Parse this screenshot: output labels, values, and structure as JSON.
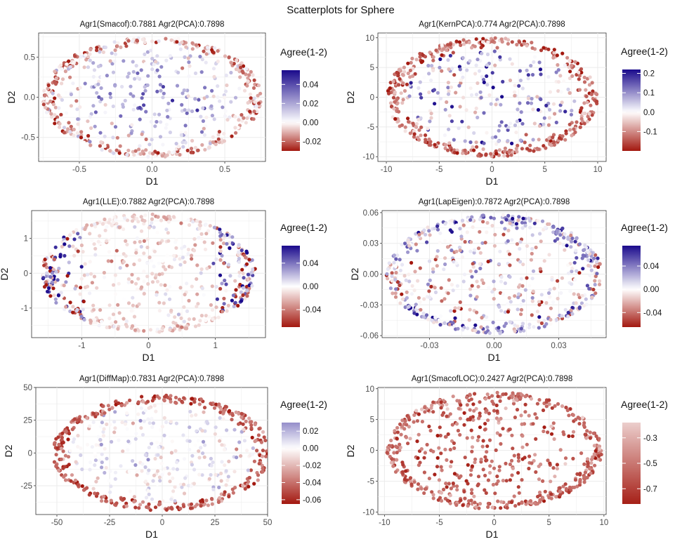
{
  "page_title": "Scatterplots for Sphere",
  "colors": {
    "low": "#a3180f",
    "mid": "#ffffff",
    "high": "#1a0a8c",
    "panel_bg": "#ffffff",
    "grid": "#ebebeb"
  },
  "chart_data": [
    {
      "type": "scatter",
      "title": "Agr1(Smacof):0.7881 Agr2(PCA):0.7898",
      "xlabel": "D1",
      "ylabel": "D2",
      "xlim": [
        -0.78,
        0.78
      ],
      "ylim": [
        -0.8,
        0.8
      ],
      "xticks": [
        -0.5,
        0.0,
        0.5
      ],
      "xtick_labels": [
        "-0.5",
        "0.0",
        "0.5"
      ],
      "yticks": [
        -0.5,
        0.0,
        0.5
      ],
      "ytick_labels": [
        "-0.5",
        "0.0",
        "0.5"
      ],
      "ellipse": {
        "rx": 0.75,
        "ry": 0.75
      },
      "pattern": "smacof",
      "legend_title": "Agree(1-2)",
      "color_range": [
        -0.03,
        0.055
      ],
      "legend_ticks": [
        0.04,
        0.02,
        0.0,
        -0.02
      ],
      "legend_tick_labels": [
        "0.04",
        "0.02",
        "0.00",
        "-0.02"
      ]
    },
    {
      "type": "scatter",
      "title": "Agr1(KernPCA):0.774 Agr2(PCA):0.7898",
      "xlabel": "D1",
      "ylabel": "D2",
      "xlim": [
        -10.8,
        10.8
      ],
      "ylim": [
        -10.8,
        10.8
      ],
      "xticks": [
        -10,
        -5,
        0,
        5,
        10
      ],
      "xtick_labels": [
        "-10",
        "-5",
        "0",
        "5",
        "10"
      ],
      "yticks": [
        -10,
        -5,
        0,
        5,
        10
      ],
      "ytick_labels": [
        "-10",
        "-5",
        "0",
        "5",
        "10"
      ],
      "ellipse": {
        "rx": 10,
        "ry": 10
      },
      "pattern": "kernpca",
      "legend_title": "Agree(1-2)",
      "color_range": [
        -0.2,
        0.22
      ],
      "legend_ticks": [
        0.2,
        0.1,
        0.0,
        -0.1
      ],
      "legend_tick_labels": [
        "0.2",
        "0.1",
        "0.0",
        "-0.1"
      ]
    },
    {
      "type": "scatter",
      "title": "Agr1(LLE):0.7882 Agr2(PCA):0.7898",
      "xlabel": "D1",
      "ylabel": "D2",
      "xlim": [
        -1.75,
        1.75
      ],
      "ylim": [
        -1.85,
        1.8
      ],
      "xticks": [
        -1,
        0,
        1
      ],
      "xtick_labels": [
        "-1",
        "0",
        "1"
      ],
      "yticks": [
        -1,
        0,
        1
      ],
      "ytick_labels": [
        "-1",
        "0",
        "1"
      ],
      "ellipse": {
        "rx": 1.6,
        "ry": 1.7
      },
      "pattern": "lle",
      "legend_title": "Agree(1-2)",
      "color_range": [
        -0.07,
        0.07
      ],
      "legend_ticks": [
        0.04,
        0.0,
        -0.04
      ],
      "legend_tick_labels": [
        "0.04",
        "0.00",
        "-0.04"
      ]
    },
    {
      "type": "scatter",
      "title": "Agr1(LapEigen):0.7872 Agr2(PCA):0.7898",
      "xlabel": "D1",
      "ylabel": "D2",
      "xlim": [
        -0.052,
        0.052
      ],
      "ylim": [
        -0.062,
        0.062
      ],
      "xticks": [
        -0.03,
        0.0,
        0.03
      ],
      "xtick_labels": [
        "-0.03",
        "0.00",
        "0.03"
      ],
      "yticks": [
        -0.06,
        -0.03,
        0.0,
        0.03,
        0.06
      ],
      "ytick_labels": [
        "-0.06",
        "-0.03",
        "0.00",
        "0.03",
        "0.06"
      ],
      "ellipse": {
        "rx": 0.05,
        "ry": 0.058
      },
      "pattern": "lapeigen",
      "legend_title": "Agree(1-2)",
      "color_range": [
        -0.065,
        0.075
      ],
      "legend_ticks": [
        0.04,
        0.0,
        -0.04
      ],
      "legend_tick_labels": [
        "0.04",
        "0.00",
        "-0.04"
      ]
    },
    {
      "type": "scatter",
      "title": "Agr1(DiffMap):0.7831 Agr2(PCA):0.7898",
      "xlabel": "D1",
      "ylabel": "D2",
      "xlim": [
        -60,
        50
      ],
      "ylim": [
        -47,
        50
      ],
      "xticks": [
        -50,
        -25,
        0,
        25,
        50
      ],
      "xtick_labels": [
        "-50",
        "-25",
        "0",
        "25",
        "50"
      ],
      "yticks": [
        -25,
        0,
        25,
        50
      ],
      "ytick_labels": [
        "-25",
        "0",
        "25",
        "50"
      ],
      "ellipse": {
        "rx": 52,
        "ry": 44
      },
      "pattern": "diffmap",
      "legend_title": "Agree(1-2)",
      "color_range": [
        -0.065,
        0.065
      ],
      "legend_visible_range": [
        -0.065,
        0.03
      ],
      "legend_ticks": [
        0.02,
        0.0,
        -0.02,
        -0.04,
        -0.06
      ],
      "legend_tick_labels": [
        "0.02",
        "0.00",
        "-0.02",
        "-0.04",
        "-0.06"
      ]
    },
    {
      "type": "scatter",
      "title": "Agr1(SmacofLOC):0.2427 Agr2(PCA):0.7898",
      "xlabel": "D1",
      "ylabel": "D2",
      "xlim": [
        -10.6,
        10.2
      ],
      "ylim": [
        -10.4,
        10.2
      ],
      "xticks": [
        -10,
        -5,
        0,
        5,
        10
      ],
      "xtick_labels": [
        "-10",
        "-5",
        "0",
        "5",
        "10"
      ],
      "yticks": [
        -10,
        -5,
        0,
        5,
        10
      ],
      "ytick_labels": [
        "-10",
        "-5",
        "0",
        "5",
        "10"
      ],
      "ellipse": {
        "rx": 9.8,
        "ry": 9.5
      },
      "pattern": "smacofloc",
      "legend_title": "Agree(1-2)",
      "color_range": [
        -0.85,
        0.85
      ],
      "legend_visible_range": [
        -0.82,
        -0.18
      ],
      "legend_ticks": [
        -0.3,
        -0.5,
        -0.7
      ],
      "legend_tick_labels": [
        "-0.3",
        "-0.5",
        "-0.7"
      ]
    }
  ]
}
